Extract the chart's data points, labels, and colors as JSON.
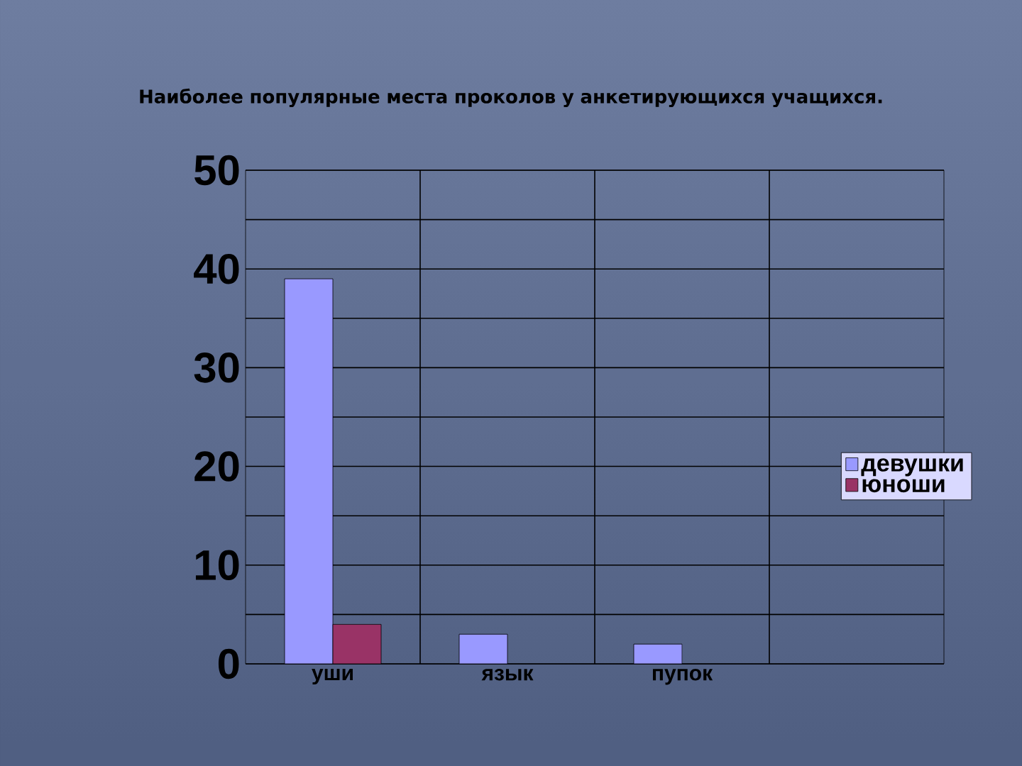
{
  "chart_data": {
    "type": "bar",
    "title": "Наиболее популярные места проколов у анкетирующихся учащихся.",
    "categories": [
      "уши",
      "язык",
      "пупок",
      null
    ],
    "series": [
      {
        "name": "девушки",
        "color": "#9999ff",
        "values": [
          39,
          3,
          2,
          null
        ]
      },
      {
        "name": "юноши",
        "color": "#993366",
        "values": [
          4,
          null,
          null,
          null
        ]
      }
    ],
    "ylim": [
      0,
      50
    ],
    "yticks": [
      0,
      10,
      20,
      30,
      40,
      50
    ],
    "grid": true,
    "legend": "right"
  }
}
